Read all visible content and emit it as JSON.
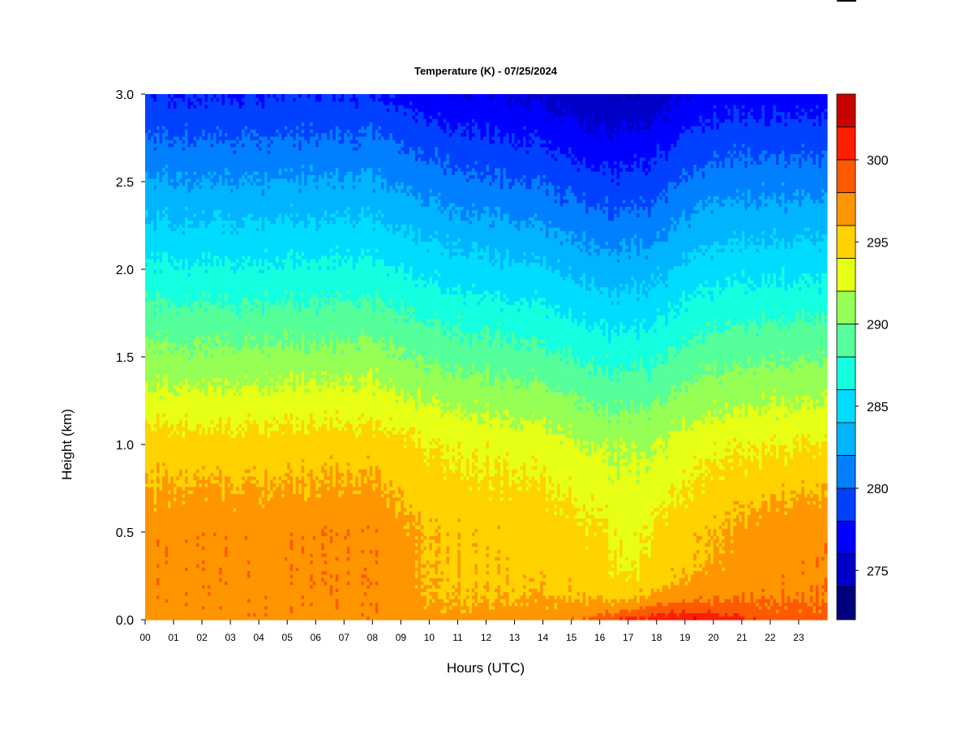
{
  "chart_data": {
    "type": "heatmap",
    "title": "Temperature (K) - 07/25/2024",
    "xlabel": "Hours (UTC)",
    "ylabel": "Height (km)",
    "x_ticks": [
      "00",
      "01",
      "02",
      "03",
      "04",
      "05",
      "06",
      "07",
      "08",
      "09",
      "10",
      "11",
      "12",
      "13",
      "14",
      "15",
      "16",
      "17",
      "18",
      "19",
      "20",
      "21",
      "22",
      "23"
    ],
    "x_range": [
      0,
      24
    ],
    "y_ticks": [
      "0.0",
      "0.5",
      "1.0",
      "1.5",
      "2.0",
      "2.5",
      "3.0"
    ],
    "y_range": [
      0,
      3
    ],
    "colorbar": {
      "ticks": [
        "275",
        "280",
        "285",
        "290",
        "295",
        "300"
      ],
      "range": [
        272,
        304
      ],
      "levels": [
        272,
        274,
        276,
        278,
        280,
        282,
        284,
        286,
        288,
        290,
        292,
        294,
        296,
        298,
        300,
        302,
        304
      ],
      "colors": [
        "#00007f",
        "#0000c8",
        "#0000ff",
        "#0040ff",
        "#0080ff",
        "#00b4ff",
        "#00dcff",
        "#14ffe0",
        "#55ff9a",
        "#96ff55",
        "#e6ff14",
        "#ffd200",
        "#ff9600",
        "#ff5a00",
        "#ff1e00",
        "#c80000",
        "#7f0000"
      ]
    },
    "profiles": {
      "hours": [
        0,
        2,
        4,
        6,
        8,
        10,
        12,
        14,
        16,
        17,
        18,
        19,
        20,
        22,
        24
      ],
      "surface": [
        297.5,
        297.3,
        297.5,
        297.2,
        297.5,
        296.8,
        297.0,
        297.6,
        299.2,
        300.6,
        301.5,
        302.3,
        301.8,
        299.5,
        298.8
      ],
      "h0_5": [
        297.3,
        297.5,
        297.2,
        297.6,
        297.5,
        295.8,
        295.5,
        295.2,
        294.5,
        293.0,
        294.5,
        295.2,
        296.0,
        297.1,
        297.3
      ],
      "h1_0": [
        295.0,
        294.8,
        294.8,
        295.0,
        295.0,
        294.0,
        293.5,
        293.0,
        292.0,
        291.5,
        292.0,
        293.0,
        293.5,
        294.0,
        294.0
      ],
      "lapse_above_1km": [
        8.5,
        8.5,
        8.5,
        8.5,
        8.5,
        8.6,
        8.7,
        8.8,
        8.8,
        8.7,
        8.6,
        8.4,
        8.3,
        8.5,
        8.6
      ]
    }
  }
}
